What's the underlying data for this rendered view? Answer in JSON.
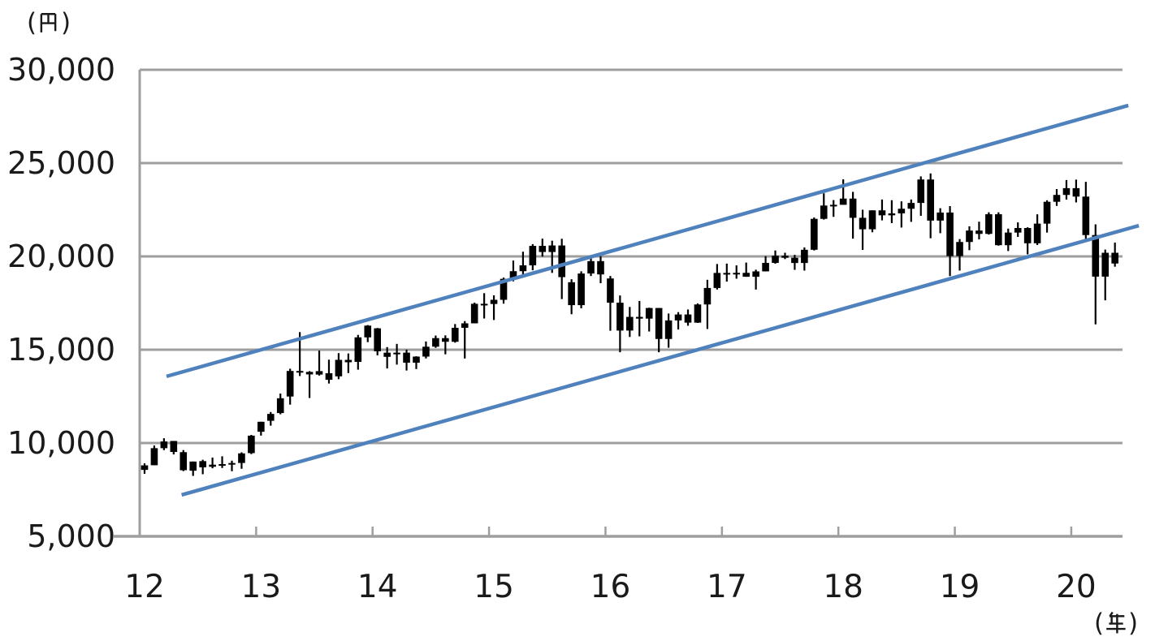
{
  "chart_data": {
    "type": "candlestick",
    "title": "",
    "grid": "horizontal-only",
    "legend": "none",
    "y_axis": {
      "unit_label": "(円)",
      "min": 5000,
      "max": 30000,
      "step": 5000,
      "tick_values": [
        30000,
        25000,
        20000,
        15000,
        10000,
        5000
      ],
      "tick_labels": [
        "30,000",
        "25,000",
        "20,000",
        "15,000",
        "10,000",
        "5,000"
      ]
    },
    "x_axis": {
      "unit_label": "(年)",
      "start_year": 2012,
      "end_year_fraction": 2020.44,
      "tick_years": [
        2012,
        2013,
        2014,
        2015,
        2016,
        2017,
        2018,
        2019,
        2020
      ],
      "tick_labels": [
        "12",
        "13",
        "14",
        "15",
        "16",
        "17",
        "18",
        "19",
        "20"
      ]
    },
    "candles_month_ohlc": [
      [
        "2012-01",
        8560,
        8911,
        8350,
        8803
      ],
      [
        "2012-02",
        8810,
        9866,
        8810,
        9723
      ],
      [
        "2012-03",
        9723,
        10255,
        9618,
        10084
      ],
      [
        "2012-04",
        10110,
        10110,
        9388,
        9521
      ],
      [
        "2012-05",
        9510,
        9622,
        8496,
        8543
      ],
      [
        "2012-06",
        8517,
        9007,
        8238,
        9007
      ],
      [
        "2012-07",
        9030,
        9104,
        8328,
        8695
      ],
      [
        "2012-08",
        8727,
        9222,
        8647,
        8840
      ],
      [
        "2012-09",
        8840,
        9288,
        8661,
        8870
      ],
      [
        "2012-10",
        8875,
        9055,
        8488,
        8928
      ],
      [
        "2012-11",
        8931,
        9500,
        8619,
        9446
      ],
      [
        "2012-12",
        9459,
        10433,
        9406,
        10395
      ],
      [
        "2013-01",
        10604,
        11139,
        10398,
        11139
      ],
      [
        "2013-02",
        11191,
        11662,
        10930,
        11559
      ],
      [
        "2013-03",
        11606,
        12650,
        11542,
        12398
      ],
      [
        "2013-04",
        12492,
        13983,
        12056,
        13861
      ],
      [
        "2013-05",
        13860,
        15943,
        13590,
        13775
      ],
      [
        "2013-06",
        13812,
        13852,
        12415,
        13677
      ],
      [
        "2013-07",
        13852,
        14953,
        13613,
        13668
      ],
      [
        "2013-08",
        13740,
        14466,
        13188,
        13389
      ],
      [
        "2013-09",
        13572,
        14817,
        13421,
        14456
      ],
      [
        "2013-10",
        14455,
        14799,
        13749,
        14328
      ],
      [
        "2013-11",
        14347,
        15794,
        13932,
        15662
      ],
      [
        "2013-12",
        15662,
        16320,
        15407,
        16291
      ],
      [
        "2014-01",
        16147,
        16164,
        14699,
        14915
      ],
      [
        "2014-02",
        14619,
        15140,
        13995,
        14841
      ],
      [
        "2014-03",
        14841,
        15312,
        14203,
        14828
      ],
      [
        "2014-04",
        14843,
        15004,
        13885,
        14304
      ],
      [
        "2014-05",
        14304,
        14649,
        13964,
        14632
      ],
      [
        "2014-06",
        14632,
        15442,
        14532,
        15162
      ],
      [
        "2014-07",
        15162,
        15759,
        15101,
        15621
      ],
      [
        "2014-08",
        15621,
        15769,
        14753,
        15425
      ],
      [
        "2014-09",
        15425,
        16374,
        15379,
        16174
      ],
      [
        "2014-10",
        16174,
        16533,
        14529,
        16414
      ],
      [
        "2014-11",
        16414,
        17520,
        16414,
        17460
      ],
      [
        "2014-12",
        17460,
        18030,
        16672,
        17451
      ],
      [
        "2015-01",
        17451,
        17915,
        16592,
        17674
      ],
      [
        "2015-02",
        17674,
        18865,
        17468,
        18798
      ],
      [
        "2015-03",
        18798,
        19778,
        18665,
        19207
      ],
      [
        "2015-04",
        19207,
        20252,
        19034,
        19520
      ],
      [
        "2015-05",
        19520,
        20655,
        19257,
        20563
      ],
      [
        "2015-06",
        20563,
        20952,
        19990,
        20236
      ],
      [
        "2015-07",
        20236,
        20841,
        19116,
        20585
      ],
      [
        "2015-08",
        20585,
        20946,
        17714,
        18890
      ],
      [
        "2015-09",
        18617,
        18777,
        16901,
        17388
      ],
      [
        "2015-10",
        17388,
        19202,
        17219,
        19083
      ],
      [
        "2015-11",
        19083,
        20012,
        18948,
        19747
      ],
      [
        "2015-12",
        19747,
        20012,
        18565,
        19034
      ],
      [
        "2016-01",
        18818,
        18951,
        16017,
        17518
      ],
      [
        "2016-02",
        17518,
        17905,
        14866,
        16027
      ],
      [
        "2016-03",
        16027,
        17291,
        15684,
        16759
      ],
      [
        "2016-04",
        16759,
        17613,
        15715,
        16666
      ],
      [
        "2016-05",
        16666,
        17251,
        15975,
        17235
      ],
      [
        "2016-06",
        17235,
        17011,
        14864,
        15576
      ],
      [
        "2016-07",
        15576,
        16938,
        15107,
        16569
      ],
      [
        "2016-08",
        16569,
        17013,
        16083,
        16887
      ],
      [
        "2016-09",
        16887,
        17156,
        16285,
        16450
      ],
      [
        "2016-10",
        16450,
        17482,
        16436,
        17425
      ],
      [
        "2016-11",
        17425,
        18746,
        16111,
        18308
      ],
      [
        "2016-12",
        18308,
        19592,
        18224,
        19114
      ],
      [
        "2017-01",
        19114,
        19615,
        18650,
        19041
      ],
      [
        "2017-02",
        19041,
        19519,
        18805,
        19119
      ],
      [
        "2017-03",
        19119,
        19668,
        18909,
        18909
      ],
      [
        "2017-04",
        18909,
        19289,
        18224,
        19197
      ],
      [
        "2017-05",
        19197,
        20014,
        19197,
        19651
      ],
      [
        "2017-06",
        19651,
        20318,
        19610,
        20033
      ],
      [
        "2017-07",
        20033,
        20195,
        19856,
        19925
      ],
      [
        "2017-08",
        19925,
        20081,
        19280,
        19646
      ],
      [
        "2017-09",
        19646,
        20481,
        19239,
        20356
      ],
      [
        "2017-10",
        20356,
        22086,
        20318,
        22012
      ],
      [
        "2017-11",
        22012,
        23382,
        21972,
        22725
      ],
      [
        "2017-12",
        22725,
        23018,
        22119,
        22765
      ],
      [
        "2018-01",
        22765,
        24129,
        22765,
        23098
      ],
      [
        "2018-02",
        23098,
        23459,
        20950,
        22068
      ],
      [
        "2018-03",
        22068,
        22502,
        20347,
        21454
      ],
      [
        "2018-04",
        21454,
        22362,
        21292,
        22468
      ],
      [
        "2018-05",
        22468,
        23050,
        21931,
        22202
      ],
      [
        "2018-06",
        22202,
        23011,
        21785,
        22305
      ],
      [
        "2018-07",
        22305,
        22949,
        21547,
        22554
      ],
      [
        "2018-08",
        22554,
        23050,
        21851,
        22865
      ],
      [
        "2018-09",
        22865,
        24286,
        22172,
        24120
      ],
      [
        "2018-10",
        24120,
        24448,
        20971,
        21920
      ],
      [
        "2018-11",
        21920,
        22583,
        21243,
        22351
      ],
      [
        "2018-12",
        22351,
        22698,
        18948,
        20015
      ],
      [
        "2019-01",
        20015,
        20929,
        19241,
        20773
      ],
      [
        "2019-02",
        20773,
        21613,
        20333,
        21385
      ],
      [
        "2019-03",
        21385,
        21860,
        20911,
        21206
      ],
      [
        "2019-04",
        21206,
        22362,
        21169,
        22259
      ],
      [
        "2019-05",
        22259,
        22362,
        20574,
        20601
      ],
      [
        "2019-06",
        20601,
        21489,
        20289,
        21276
      ],
      [
        "2019-07",
        21276,
        21823,
        21046,
        21522
      ],
      [
        "2019-08",
        21522,
        21560,
        20110,
        20704
      ],
      [
        "2019-09",
        20704,
        22255,
        20613,
        21756
      ],
      [
        "2019-10",
        21756,
        23008,
        21276,
        22927
      ],
      [
        "2019-11",
        22927,
        23608,
        22705,
        23294
      ],
      [
        "2019-12",
        23294,
        24091,
        23045,
        23657
      ],
      [
        "2020-01",
        23657,
        24115,
        22892,
        23205
      ],
      [
        "2020-02",
        23205,
        23995,
        20916,
        21143
      ],
      [
        "2020-03",
        21143,
        21719,
        16358,
        18917
      ],
      [
        "2020-04",
        18917,
        20365,
        17646,
        20194
      ],
      [
        "2020-05",
        20194,
        20742,
        19449,
        19619
      ]
    ],
    "trendlines": [
      {
        "name": "channel-upper",
        "start": {
          "year": 2012.23,
          "value": 13570
        },
        "end": {
          "year": 2020.49,
          "value": 28090
        }
      },
      {
        "name": "channel-lower",
        "start": {
          "year": 2012.36,
          "value": 7220
        },
        "end": {
          "year": 2020.58,
          "value": 21650
        }
      }
    ],
    "colors": {
      "candle": "#000000",
      "trendline": "#4f81bd",
      "gridline": "#9e9e9e",
      "axis": "#9e9e9e",
      "text": "#1a1a1a",
      "background": "#ffffff"
    }
  }
}
